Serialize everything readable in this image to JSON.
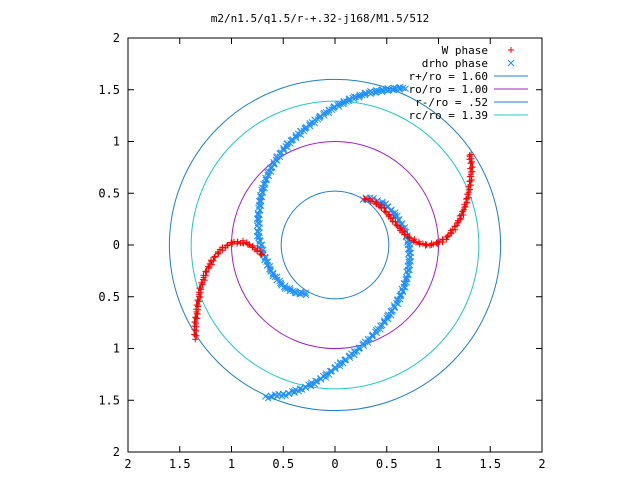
{
  "chart_data": {
    "type": "scatter",
    "title": "m2/n1.5/q1.5/r-+.32-j168/M1.5/512",
    "xlabel": "",
    "ylabel": "",
    "xlim": [
      -2,
      2
    ],
    "ylim": [
      -2,
      2
    ],
    "x_tick_values": [
      -2,
      -1.5,
      -1,
      -0.5,
      0,
      0.5,
      1,
      1.5,
      2
    ],
    "x_tick_labels": [
      "2",
      "1.5",
      "1",
      "0.5",
      "0",
      "0.5",
      "1",
      "1.5",
      "2"
    ],
    "y_tick_values": [
      2,
      1.5,
      1,
      0.5,
      0,
      -0.5,
      -1,
      -1.5,
      -2
    ],
    "y_tick_labels": [
      "2",
      "1.5",
      "1",
      "0.5",
      "0",
      "0.5",
      "1",
      "1.5",
      "2"
    ],
    "grid": false,
    "legend_position": "top-right",
    "series": [
      {
        "name": "W phase",
        "kind": "points",
        "marker": "plus",
        "color": "#ff0000",
        "arms": [
          [
            [
              1.3,
              0.88
            ],
            [
              1.32,
              0.78
            ],
            [
              1.31,
              0.62
            ],
            [
              1.28,
              0.45
            ],
            [
              1.23,
              0.3
            ],
            [
              1.16,
              0.17
            ],
            [
              1.07,
              0.06
            ],
            [
              0.97,
              0.01
            ],
            [
              0.88,
              0.0
            ],
            [
              0.8,
              0.02
            ],
            [
              0.72,
              0.07
            ],
            [
              0.65,
              0.13
            ],
            [
              0.6,
              0.19
            ],
            [
              0.55,
              0.25
            ],
            [
              0.5,
              0.31
            ],
            [
              0.46,
              0.36
            ],
            [
              0.4,
              0.4
            ],
            [
              0.34,
              0.43
            ],
            [
              0.29,
              0.45
            ]
          ],
          [
            [
              -1.35,
              -0.9
            ],
            [
              -1.35,
              -0.78
            ],
            [
              -1.33,
              -0.6
            ],
            [
              -1.3,
              -0.42
            ],
            [
              -1.25,
              -0.27
            ],
            [
              -1.18,
              -0.14
            ],
            [
              -1.1,
              -0.04
            ],
            [
              -1.0,
              0.02
            ],
            [
              -0.9,
              0.03
            ],
            [
              -0.82,
              0.0
            ],
            [
              -0.75,
              -0.05
            ],
            [
              -0.7,
              -0.1
            ]
          ]
        ]
      },
      {
        "name": "drho phase",
        "kind": "points",
        "marker": "cross",
        "color": "#1e90ff",
        "arms": [
          [
            [
              0.27,
              0.45
            ],
            [
              0.38,
              0.44
            ],
            [
              0.5,
              0.38
            ],
            [
              0.6,
              0.27
            ],
            [
              0.68,
              0.13
            ],
            [
              0.72,
              -0.02
            ],
            [
              0.72,
              -0.17
            ],
            [
              0.69,
              -0.34
            ],
            [
              0.63,
              -0.5
            ],
            [
              0.55,
              -0.64
            ],
            [
              0.45,
              -0.78
            ],
            [
              0.33,
              -0.91
            ],
            [
              0.2,
              -1.03
            ],
            [
              0.05,
              -1.15
            ],
            [
              -0.1,
              -1.27
            ],
            [
              -0.27,
              -1.37
            ],
            [
              -0.46,
              -1.44
            ],
            [
              -0.66,
              -1.47
            ]
          ],
          [
            [
              -0.28,
              -0.47
            ],
            [
              -0.38,
              -0.46
            ],
            [
              -0.5,
              -0.4
            ],
            [
              -0.61,
              -0.27
            ],
            [
              -0.69,
              -0.1
            ],
            [
              -0.74,
              0.08
            ],
            [
              -0.74,
              0.28
            ],
            [
              -0.71,
              0.5
            ],
            [
              -0.65,
              0.68
            ],
            [
              -0.56,
              0.84
            ],
            [
              -0.45,
              0.98
            ],
            [
              -0.32,
              1.1
            ],
            [
              -0.17,
              1.22
            ],
            [
              -0.01,
              1.33
            ],
            [
              0.15,
              1.41
            ],
            [
              0.32,
              1.47
            ],
            [
              0.5,
              1.5
            ],
            [
              0.67,
              1.52
            ]
          ]
        ]
      },
      {
        "name": "r+/ro = 1.60",
        "kind": "circle",
        "radius": 1.6,
        "color": "#1f7fc8"
      },
      {
        "name": "ro/ro = 1.00",
        "kind": "circle",
        "radius": 1.0,
        "color": "#a020c8"
      },
      {
        "name": "r-/ro = .52",
        "kind": "circle",
        "radius": 0.52,
        "color": "#1f7fc8"
      },
      {
        "name": "rc/ro = 1.39",
        "kind": "circle",
        "radius": 1.39,
        "color": "#20c8c8"
      }
    ]
  }
}
